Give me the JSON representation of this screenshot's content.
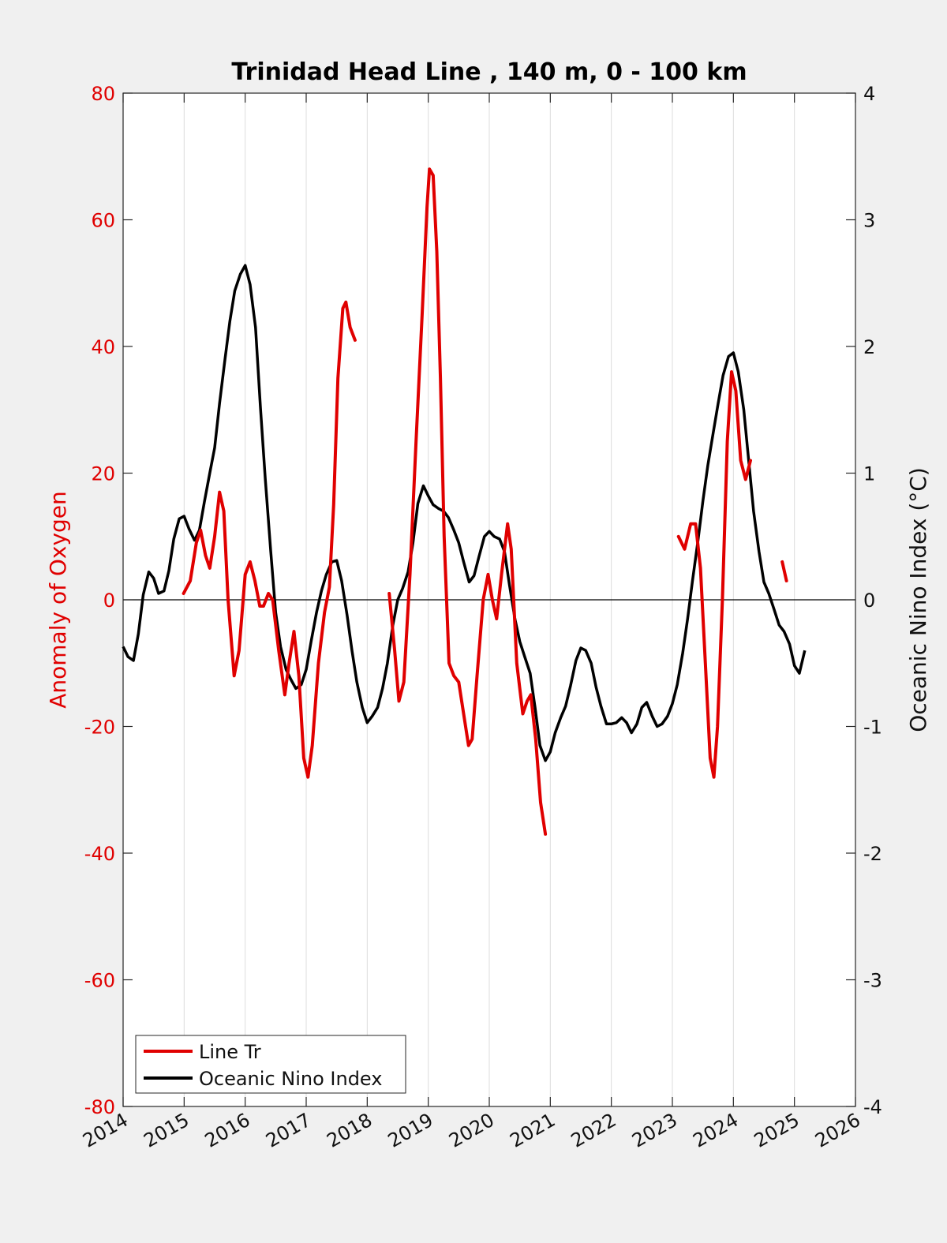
{
  "chart_data": {
    "type": "line",
    "title": "Trinidad Head Line , 140 m, 0 - 100 km",
    "xlim": [
      2014,
      2026
    ],
    "x_ticks": [
      "2014",
      "2015",
      "2016",
      "2017",
      "2018",
      "2019",
      "2020",
      "2021",
      "2022",
      "2023",
      "2024",
      "2025",
      "2026"
    ],
    "left_axis": {
      "label": "Anomaly of Oxygen",
      "ylim": [
        -80,
        80
      ],
      "ticks": [
        "80",
        "60",
        "40",
        "20",
        "0",
        "-20",
        "-40",
        "-60",
        "-80"
      ],
      "color": "#e00000"
    },
    "right_axis": {
      "label": "Oceanic Nino Index (°C)",
      "ylim": [
        -4,
        4
      ],
      "ticks": [
        "4",
        "3",
        "2",
        "1",
        "0",
        "-1",
        "-2",
        "-3",
        "-4"
      ],
      "color": "#000000"
    },
    "grid": "vertical",
    "legend_position": "bottom-left",
    "series": [
      {
        "name": "Line Tr",
        "axis": "left",
        "color": "#e00000",
        "segments": [
          [
            [
              2014.99,
              1
            ],
            [
              2015.1,
              3
            ],
            [
              2015.2,
              9
            ],
            [
              2015.27,
              11
            ],
            [
              2015.35,
              7
            ],
            [
              2015.42,
              5
            ],
            [
              2015.5,
              10
            ],
            [
              2015.58,
              17
            ],
            [
              2015.65,
              14
            ],
            [
              2015.72,
              0
            ],
            [
              2015.82,
              -12
            ],
            [
              2015.9,
              -8
            ],
            [
              2016.0,
              4
            ],
            [
              2016.08,
              6
            ],
            [
              2016.16,
              3
            ],
            [
              2016.24,
              -1
            ],
            [
              2016.3,
              -1
            ],
            [
              2016.38,
              1
            ],
            [
              2016.45,
              0
            ],
            [
              2016.55,
              -8
            ],
            [
              2016.65,
              -15
            ],
            [
              2016.72,
              -10
            ],
            [
              2016.8,
              -5
            ],
            [
              2016.88,
              -12
            ],
            [
              2016.96,
              -25
            ],
            [
              2017.03,
              -28
            ],
            [
              2017.1,
              -23
            ],
            [
              2017.2,
              -10
            ],
            [
              2017.3,
              -2
            ],
            [
              2017.38,
              2
            ],
            [
              2017.45,
              15
            ],
            [
              2017.52,
              35
            ],
            [
              2017.6,
              46
            ],
            [
              2017.65,
              47
            ],
            [
              2017.72,
              43
            ],
            [
              2017.8,
              41
            ]
          ],
          [
            [
              2018.36,
              1
            ],
            [
              2018.45,
              -8
            ],
            [
              2018.52,
              -16
            ],
            [
              2018.6,
              -13
            ],
            [
              2018.7,
              4
            ],
            [
              2018.8,
              25
            ],
            [
              2018.9,
              45
            ],
            [
              2018.98,
              62
            ],
            [
              2019.02,
              68
            ],
            [
              2019.08,
              67
            ],
            [
              2019.14,
              55
            ],
            [
              2019.2,
              35
            ],
            [
              2019.26,
              10
            ],
            [
              2019.34,
              -10
            ],
            [
              2019.42,
              -12
            ],
            [
              2019.5,
              -13
            ],
            [
              2019.58,
              -18
            ],
            [
              2019.66,
              -23
            ],
            [
              2019.72,
              -22
            ],
            [
              2019.8,
              -12
            ],
            [
              2019.9,
              0
            ],
            [
              2019.98,
              4
            ],
            [
              2020.05,
              0
            ],
            [
              2020.12,
              -3
            ],
            [
              2020.2,
              4
            ],
            [
              2020.3,
              12
            ],
            [
              2020.36,
              8
            ],
            [
              2020.45,
              -10
            ],
            [
              2020.55,
              -18
            ],
            [
              2020.62,
              -16
            ],
            [
              2020.68,
              -15
            ],
            [
              2020.76,
              -22
            ],
            [
              2020.84,
              -32
            ],
            [
              2020.92,
              -37
            ]
          ]
        ],
        "points_single": [],
        "segments_more": [
          [
            [
              2023.1,
              10
            ],
            [
              2023.2,
              8
            ],
            [
              2023.3,
              12
            ],
            [
              2023.38,
              12
            ],
            [
              2023.46,
              5
            ],
            [
              2023.54,
              -10
            ],
            [
              2023.62,
              -25
            ],
            [
              2023.68,
              -28
            ],
            [
              2023.74,
              -20
            ],
            [
              2023.82,
              0
            ],
            [
              2023.9,
              25
            ],
            [
              2023.97,
              36
            ],
            [
              2024.04,
              33
            ],
            [
              2024.12,
              22
            ],
            [
              2024.2,
              19
            ],
            [
              2024.28,
              22
            ]
          ],
          [
            [
              2024.8,
              6
            ],
            [
              2024.87,
              3
            ]
          ]
        ]
      },
      {
        "name": "Oceanic Nino Index",
        "axis": "right",
        "color": "#000000",
        "points": [
          [
            2014.0,
            -0.37
          ],
          [
            2014.08,
            -0.45
          ],
          [
            2014.17,
            -0.48
          ],
          [
            2014.25,
            -0.27
          ],
          [
            2014.33,
            0.04
          ],
          [
            2014.42,
            0.22
          ],
          [
            2014.5,
            0.17
          ],
          [
            2014.58,
            0.05
          ],
          [
            2014.67,
            0.07
          ],
          [
            2014.75,
            0.23
          ],
          [
            2014.83,
            0.48
          ],
          [
            2014.92,
            0.64
          ],
          [
            2015.0,
            0.66
          ],
          [
            2015.08,
            0.56
          ],
          [
            2015.17,
            0.47
          ],
          [
            2015.25,
            0.55
          ],
          [
            2015.33,
            0.77
          ],
          [
            2015.42,
            1.0
          ],
          [
            2015.5,
            1.2
          ],
          [
            2015.58,
            1.55
          ],
          [
            2015.67,
            1.9
          ],
          [
            2015.75,
            2.2
          ],
          [
            2015.83,
            2.44
          ],
          [
            2015.92,
            2.57
          ],
          [
            2016.0,
            2.64
          ],
          [
            2016.08,
            2.49
          ],
          [
            2016.17,
            2.15
          ],
          [
            2016.25,
            1.52
          ],
          [
            2016.33,
            0.95
          ],
          [
            2016.42,
            0.38
          ],
          [
            2016.5,
            -0.1
          ],
          [
            2016.58,
            -0.37
          ],
          [
            2016.67,
            -0.55
          ],
          [
            2016.75,
            -0.63
          ],
          [
            2016.83,
            -0.7
          ],
          [
            2016.92,
            -0.67
          ],
          [
            2017.0,
            -0.55
          ],
          [
            2017.08,
            -0.33
          ],
          [
            2017.17,
            -0.1
          ],
          [
            2017.25,
            0.07
          ],
          [
            2017.33,
            0.2
          ],
          [
            2017.42,
            0.3
          ],
          [
            2017.5,
            0.31
          ],
          [
            2017.58,
            0.15
          ],
          [
            2017.67,
            -0.12
          ],
          [
            2017.75,
            -0.4
          ],
          [
            2017.83,
            -0.65
          ],
          [
            2017.92,
            -0.85
          ],
          [
            2018.0,
            -0.97
          ],
          [
            2018.08,
            -0.92
          ],
          [
            2018.17,
            -0.85
          ],
          [
            2018.25,
            -0.7
          ],
          [
            2018.33,
            -0.5
          ],
          [
            2018.42,
            -0.2
          ],
          [
            2018.5,
            0.0
          ],
          [
            2018.58,
            0.09
          ],
          [
            2018.67,
            0.22
          ],
          [
            2018.75,
            0.45
          ],
          [
            2018.83,
            0.76
          ],
          [
            2018.92,
            0.9
          ],
          [
            2019.0,
            0.82
          ],
          [
            2019.08,
            0.75
          ],
          [
            2019.17,
            0.72
          ],
          [
            2019.25,
            0.7
          ],
          [
            2019.33,
            0.65
          ],
          [
            2019.42,
            0.55
          ],
          [
            2019.5,
            0.45
          ],
          [
            2019.58,
            0.3
          ],
          [
            2019.67,
            0.14
          ],
          [
            2019.75,
            0.19
          ],
          [
            2019.83,
            0.34
          ],
          [
            2019.92,
            0.5
          ],
          [
            2020.0,
            0.54
          ],
          [
            2020.08,
            0.5
          ],
          [
            2020.17,
            0.48
          ],
          [
            2020.25,
            0.38
          ],
          [
            2020.33,
            0.12
          ],
          [
            2020.42,
            -0.15
          ],
          [
            2020.5,
            -0.33
          ],
          [
            2020.58,
            -0.45
          ],
          [
            2020.67,
            -0.58
          ],
          [
            2020.75,
            -0.85
          ],
          [
            2020.83,
            -1.15
          ],
          [
            2020.92,
            -1.27
          ],
          [
            2021.0,
            -1.2
          ],
          [
            2021.08,
            -1.05
          ],
          [
            2021.17,
            -0.93
          ],
          [
            2021.25,
            -0.84
          ],
          [
            2021.33,
            -0.68
          ],
          [
            2021.42,
            -0.48
          ],
          [
            2021.5,
            -0.38
          ],
          [
            2021.58,
            -0.4
          ],
          [
            2021.67,
            -0.5
          ],
          [
            2021.75,
            -0.69
          ],
          [
            2021.83,
            -0.84
          ],
          [
            2021.92,
            -0.98
          ],
          [
            2022.0,
            -0.98
          ],
          [
            2022.08,
            -0.97
          ],
          [
            2022.17,
            -0.93
          ],
          [
            2022.25,
            -0.97
          ],
          [
            2022.33,
            -1.05
          ],
          [
            2022.42,
            -0.98
          ],
          [
            2022.5,
            -0.85
          ],
          [
            2022.58,
            -0.81
          ],
          [
            2022.67,
            -0.92
          ],
          [
            2022.75,
            -1.0
          ],
          [
            2022.83,
            -0.98
          ],
          [
            2022.92,
            -0.92
          ],
          [
            2023.0,
            -0.82
          ],
          [
            2023.08,
            -0.67
          ],
          [
            2023.17,
            -0.42
          ],
          [
            2023.25,
            -0.15
          ],
          [
            2023.33,
            0.15
          ],
          [
            2023.42,
            0.47
          ],
          [
            2023.5,
            0.78
          ],
          [
            2023.58,
            1.06
          ],
          [
            2023.67,
            1.32
          ],
          [
            2023.75,
            1.55
          ],
          [
            2023.83,
            1.77
          ],
          [
            2023.92,
            1.92
          ],
          [
            2024.0,
            1.95
          ],
          [
            2024.08,
            1.8
          ],
          [
            2024.17,
            1.5
          ],
          [
            2024.25,
            1.1
          ],
          [
            2024.33,
            0.7
          ],
          [
            2024.42,
            0.38
          ],
          [
            2024.5,
            0.14
          ],
          [
            2024.58,
            0.05
          ],
          [
            2024.67,
            -0.08
          ],
          [
            2024.75,
            -0.2
          ],
          [
            2024.83,
            -0.25
          ],
          [
            2024.92,
            -0.35
          ],
          [
            2025.0,
            -0.52
          ],
          [
            2025.08,
            -0.58
          ],
          [
            2025.17,
            -0.4
          ]
        ]
      }
    ],
    "reference_line": {
      "axis": "left",
      "y": 0
    }
  }
}
